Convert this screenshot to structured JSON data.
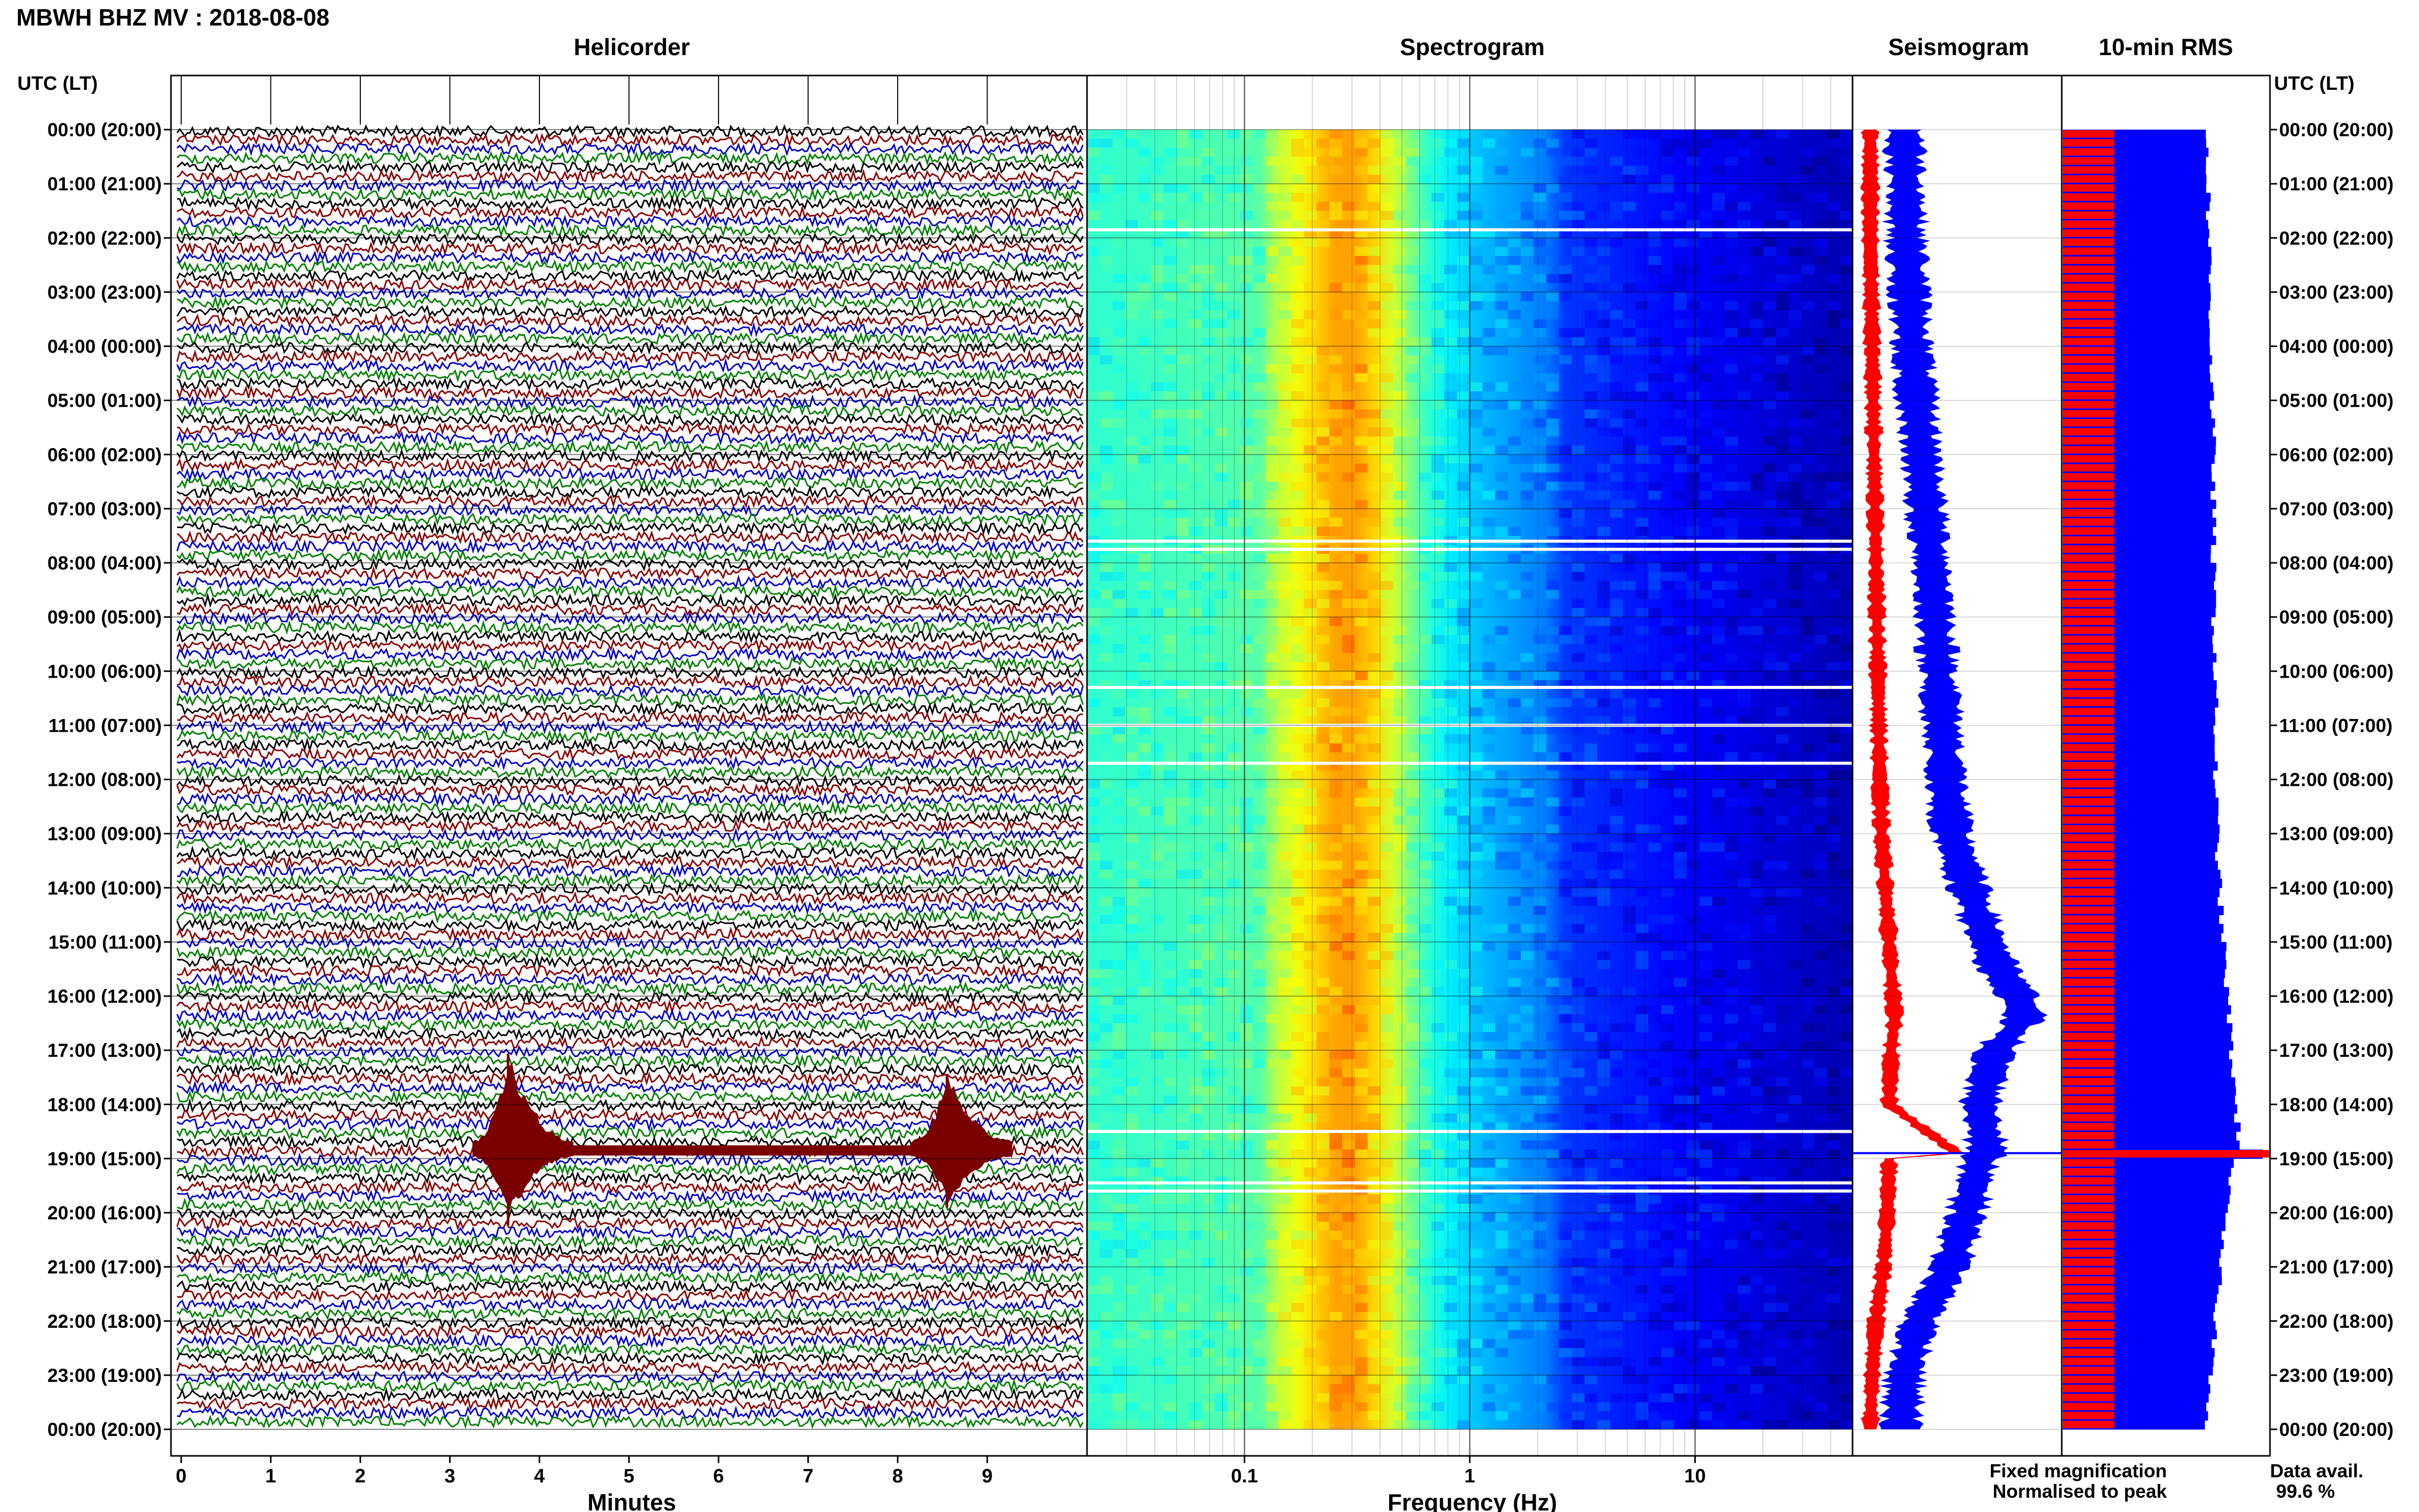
{
  "page_title": "MBWH BHZ MV : 2018-08-08",
  "time_axis_label": "UTC (LT)",
  "panels": {
    "helicorder": "Helicorder",
    "spectrogram": "Spectrogram",
    "seismogram": "Seismogram",
    "rms": "10-min RMS"
  },
  "legend": {
    "fixed": "Fixed magnification",
    "normalised": "Normalised to peak",
    "fixed_color": "#0000ff",
    "normalised_color": "#ff0000"
  },
  "availability": {
    "label": "Data avail.",
    "value": "99.6 %"
  },
  "colors": {
    "trace_cycle": [
      "#000000",
      "#8b0000",
      "#0000cd",
      "#008000"
    ],
    "event": "#7a0000",
    "fixed": "#0000ff",
    "normalised": "#ff0000"
  },
  "chart_data": [
    {
      "type": "helicorder",
      "title": "Helicorder",
      "xlabel": "Minutes",
      "x_ticks": [
        "0",
        "1",
        "2",
        "3",
        "4",
        "5",
        "6",
        "7",
        "8",
        "9"
      ],
      "xlim": [
        0,
        10
      ],
      "y_ticks": [
        "00:00 (20:00)",
        "01:00 (21:00)",
        "02:00 (22:00)",
        "03:00 (23:00)",
        "04:00 (00:00)",
        "05:00 (01:00)",
        "06:00 (02:00)",
        "07:00 (03:00)",
        "08:00 (04:00)",
        "09:00 (05:00)",
        "10:00 (06:00)",
        "11:00 (07:00)",
        "12:00 (08:00)",
        "13:00 (09:00)",
        "14:00 (10:00)",
        "15:00 (11:00)",
        "16:00 (12:00)",
        "17:00 (13:00)",
        "18:00 (14:00)",
        "19:00 (15:00)",
        "20:00 (16:00)",
        "21:00 (17:00)",
        "22:00 (18:00)",
        "23:00 (19:00)",
        "00:00 (20:00)"
      ],
      "events": [
        {
          "hour": 18.85,
          "minute": 3.65,
          "amplitude": 1.0
        },
        {
          "hour": 18.85,
          "minute": 8.55,
          "amplitude": 0.75
        }
      ]
    },
    {
      "type": "heatmap",
      "title": "Spectrogram",
      "xlabel": "Frequency (Hz)",
      "x_scale": "log",
      "xlim": [
        0.02,
        50
      ],
      "x_ticks": [
        0.1,
        1,
        10
      ],
      "x_tick_labels": [
        "0.1",
        "1",
        "10"
      ],
      "peak_frequency_hz": 0.3,
      "gap_hours": [
        1.85,
        7.6,
        7.75,
        10.3,
        11.0,
        11.7,
        18.5,
        19.45,
        19.6
      ]
    },
    {
      "type": "line",
      "title": "Seismogram",
      "series": [
        {
          "name": "Fixed magnification",
          "x": [
            0,
            2,
            4,
            6,
            8,
            10,
            12,
            13,
            14,
            15,
            15.5,
            16,
            16.4,
            17,
            18,
            18.9,
            19,
            20,
            21,
            22,
            23,
            24
          ],
          "y": [
            0.22,
            0.23,
            0.26,
            0.31,
            0.36,
            0.4,
            0.44,
            0.47,
            0.56,
            0.66,
            0.72,
            0.82,
            0.86,
            0.7,
            0.62,
            0.66,
            0.62,
            0.55,
            0.46,
            0.3,
            0.22,
            0.2
          ]
        },
        {
          "name": "Normalised to peak",
          "x": [
            0,
            2,
            4,
            6,
            8,
            10,
            12,
            13,
            14,
            15,
            15.5,
            16,
            16.4,
            17,
            18,
            18.9,
            19,
            20,
            21,
            22,
            23,
            24
          ],
          "y": [
            0.04,
            0.04,
            0.05,
            0.06,
            0.07,
            0.08,
            0.09,
            0.1,
            0.12,
            0.14,
            0.15,
            0.16,
            0.17,
            0.15,
            0.14,
            0.5,
            0.14,
            0.13,
            0.11,
            0.07,
            0.05,
            0.04
          ]
        }
      ]
    },
    {
      "type": "bar",
      "title": "10-min RMS",
      "orientation": "horizontal",
      "blue_profile": {
        "hours": [
          0,
          2,
          4,
          6,
          8,
          10,
          12,
          14,
          15,
          16,
          17,
          18,
          18.8,
          19.2,
          20,
          22,
          24
        ],
        "values": [
          0.7,
          0.71,
          0.72,
          0.73,
          0.73,
          0.74,
          0.74,
          0.76,
          0.78,
          0.8,
          0.82,
          0.84,
          0.86,
          0.82,
          0.78,
          0.74,
          0.7
        ]
      },
      "red_value": 0.25,
      "peak": {
        "hour": 18.9,
        "red": 1.0,
        "blue": 0.97
      }
    }
  ]
}
